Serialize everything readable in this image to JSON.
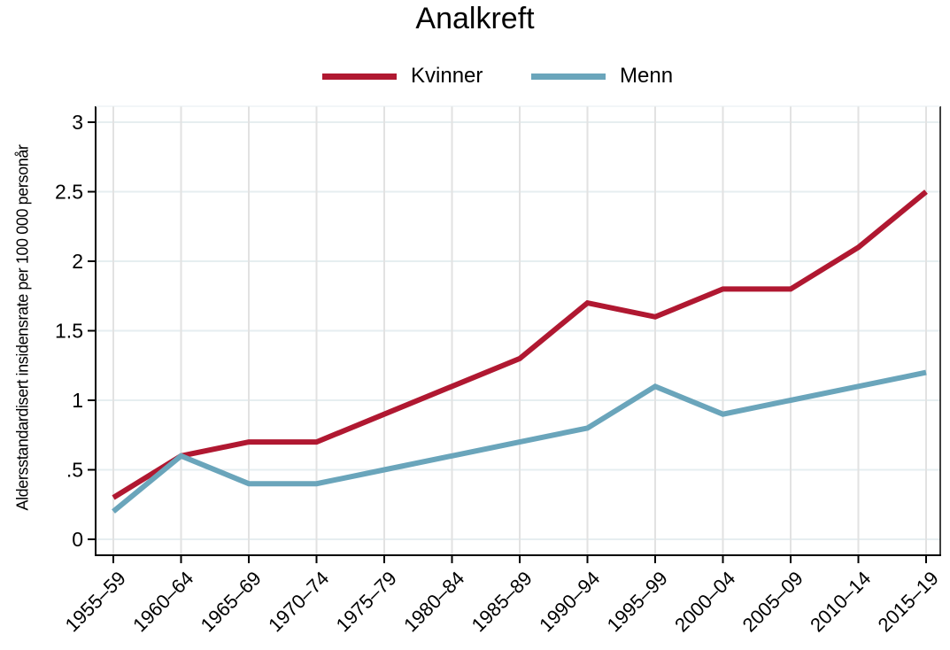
{
  "chart_data": {
    "type": "line",
    "title": "Analkreft",
    "xlabel": "",
    "ylabel": "Aldersstandardisert insidensrate per 100 000 personår",
    "ylim": [
      0,
      3
    ],
    "yticks": [
      0,
      0.5,
      1,
      1.5,
      2,
      2.5,
      3
    ],
    "ytick_labels": [
      "0",
      ".5",
      "1",
      "1.5",
      "2",
      "2.5",
      "3"
    ],
    "grid": true,
    "legend_position": "top",
    "categories": [
      "1955–59",
      "1960–64",
      "1965–69",
      "1970–74",
      "1975–79",
      "1980–84",
      "1985–89",
      "1990–94",
      "1995–99",
      "2000–04",
      "2005–09",
      "2010–14",
      "2015–19"
    ],
    "series": [
      {
        "name": "Kvinner",
        "color": "#b01831",
        "values": [
          0.3,
          0.6,
          0.7,
          0.7,
          0.9,
          1.1,
          1.3,
          1.7,
          1.6,
          1.8,
          1.8,
          2.1,
          2.5
        ]
      },
      {
        "name": "Menn",
        "color": "#6aa5bb",
        "values": [
          0.2,
          0.6,
          0.4,
          0.4,
          0.5,
          0.6,
          0.7,
          0.8,
          1.1,
          0.9,
          1.0,
          1.1,
          1.2
        ]
      }
    ]
  },
  "legend": {
    "items": [
      {
        "label": "Kvinner",
        "color": "#b01831"
      },
      {
        "label": "Menn",
        "color": "#6aa5bb"
      }
    ]
  },
  "colors": {
    "grid_horizontal": "#e6eef0",
    "grid_vertical": "#e2e2e2",
    "axis": "#000000"
  }
}
